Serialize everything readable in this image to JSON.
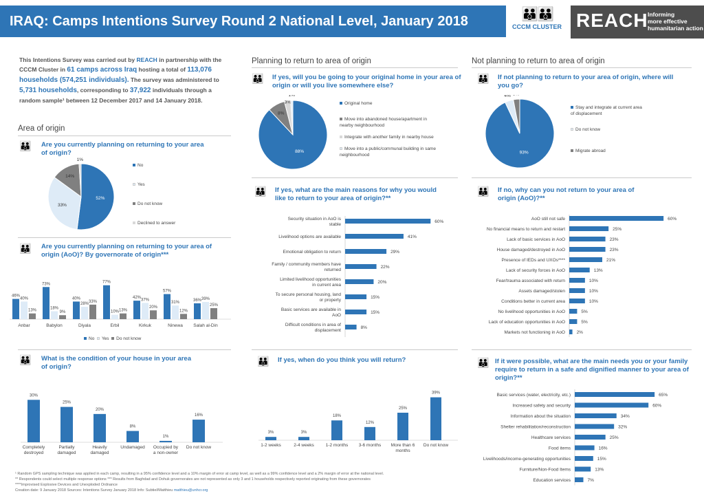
{
  "header": {
    "title": "IRAQ: Camps Intentions Survey Round 2 National Level, January 2018",
    "cccm_label": "CCCM CLUSTER",
    "reach_logo": "REACH",
    "reach_tagline_1": "Informing",
    "reach_tagline_2": "more effective",
    "reach_tagline_3": "humanitarian action"
  },
  "intro": {
    "p1": "This Intentions Survey was carried out by ",
    "reach": "REACH",
    "p2": " in partnership with the CCCM Cluster in ",
    "camps": "61 camps across Iraq",
    "p3": " hosting a total of ",
    "households": "113,076 households (574,251 individuals).",
    "p4": " The survey was administered to ",
    "sample_hh": "5,731 households",
    "p5": ", corresponding to ",
    "sample_ind": "37,922",
    "p6": " individuals through a random sample¹ between 12 December 2017 and 14 January 2018."
  },
  "sections": {
    "area_of_origin": "Area of origin",
    "planning": "Planning to return to area of origin",
    "not_planning": "Not planning to return to area of origin"
  },
  "questions": {
    "q1": "Are you currently planning on returning to your area of origin?",
    "q2": "Are you currently planning on returning to your area of origin (AoO)? By governorate of origin***",
    "q3": "What is the condition of your house in your area of origin?",
    "q4": "If yes, will you be going to your original home in your area of origin or will you live somewhere else?",
    "q5": "If yes, what are the main reasons for why you would like to return to your area of origin?**",
    "q6": "If yes, when do you think you will return?",
    "q7": "If not planning to return to your area of origin, where will you go?",
    "q8": "If no, why can you not return to your area of origin (AoO)?**",
    "q9": "If it were possible, what are the main needs you or your family require to return in a safe and dignified manner to your area of origin?**"
  },
  "colors": {
    "blue": "#2E75B6",
    "light": "#DEEBF7",
    "grey": "#808080",
    "darkgrey": "#595959"
  },
  "footnote": {
    "l1": "¹ Random GPS sampling technique was applied in each camp, resulting in a 95% confidence level and a 10% margin of error at camp level, as well as a 99% confidence level and a 2% margin of error at the national level.",
    "l2": "** Respondents could select multiple response options          *** Results from Baghdad and Dohuk governorates are not represented as only 3 and 1 households respectively reported originating from these governorates",
    "l3": "****Improvised Explosive Devices and Unexploded Ordnance",
    "l4": "Creation date: 9 January 2018  Sources: Intentions Survey January 2018  Info: Subtiel/Matthieu ",
    "email": "matthieu@unhcr.org"
  },
  "chart_data": [
    {
      "id": "planning_return",
      "type": "pie",
      "labels": [
        "No",
        "Yes",
        "Do not know",
        "Declined to answer"
      ],
      "values": [
        52,
        33,
        14,
        1
      ],
      "value_labels": [
        "52%",
        "33%",
        "14%",
        "1%"
      ],
      "colors": [
        "#2E75B6",
        "#DEEBF7",
        "#808080",
        "#D9D9D9"
      ]
    },
    {
      "id": "governorate",
      "type": "bar",
      "categories": [
        "Anbar",
        "Babylon",
        "Diyala",
        "Erbil",
        "Kirkuk",
        "Ninewa",
        "Salah al-Din"
      ],
      "series": [
        {
          "name": "No",
          "values": [
            46,
            73,
            40,
            77,
            42,
            57,
            36
          ]
        },
        {
          "name": "Yes",
          "values": [
            40,
            18,
            28,
            10,
            37,
            31,
            39
          ]
        },
        {
          "name": "Do not know",
          "values": [
            13,
            9,
            33,
            13,
            20,
            12,
            25
          ]
        }
      ],
      "ylim": [
        0,
        100
      ]
    },
    {
      "id": "house_condition",
      "type": "bar",
      "categories": [
        "Completely destroyed",
        "Partially damaged",
        "Heavily damaged",
        "Undamaged",
        "Occupied by a non-owner",
        "Do not know"
      ],
      "values": [
        30,
        25,
        20,
        8,
        1,
        16
      ],
      "ylim": [
        0,
        35
      ]
    },
    {
      "id": "original_home",
      "type": "pie",
      "labels": [
        "Original home",
        "Move into abandoned house/apartment in nearby neighbourhood",
        "Integrate with another family in nearby house",
        "Move into a public/communal building in same neighbourhood"
      ],
      "values": [
        88,
        8,
        3,
        1
      ],
      "value_labels": [
        "88%",
        "8%",
        "3%",
        "1%"
      ],
      "colors": [
        "#2E75B6",
        "#808080",
        "#D9D9D9",
        "#DEEBF7"
      ]
    },
    {
      "id": "reasons_return",
      "type": "bar",
      "orientation": "horizontal",
      "categories": [
        "Security situation in AoO is stable",
        "Livelihood options are available",
        "Emotional obligation to return",
        "Family / community members have returned",
        "Limited livelihood opportunities in current area",
        "To secure personal housing, land or property",
        "Basic services are available in AoO",
        "Difficult conditions in area of displacement"
      ],
      "values": [
        60,
        41,
        29,
        22,
        20,
        15,
        15,
        8
      ],
      "xlim": [
        0,
        70
      ]
    },
    {
      "id": "when_return",
      "type": "bar",
      "categories": [
        "1-2 weeks",
        "2-4 weeks",
        "1-2 months",
        "3-6 months",
        "More than 6 months",
        "Do not know"
      ],
      "values": [
        3,
        3,
        18,
        12,
        25,
        39
      ],
      "ylim": [
        0,
        45
      ]
    },
    {
      "id": "where_go",
      "type": "pie",
      "labels": [
        "Stay and integrate at current area of displacement",
        "Do not know",
        "Migrate abroad"
      ],
      "values": [
        93,
        4,
        3
      ],
      "value_labels": [
        "93%",
        "4%",
        "3%"
      ],
      "colors": [
        "#2E75B6",
        "#DEEBF7",
        "#808080"
      ]
    },
    {
      "id": "why_not_return",
      "type": "bar",
      "orientation": "horizontal",
      "categories": [
        "AoO still not safe",
        "No financial means to return and restart",
        "Lack of basic services in AoO",
        "House damaged/destroyed in AoO",
        "Presence of IEDs and UXOs****",
        "Lack of security forces in AoO",
        "Fear/trauma associated with return",
        "Assets damaged/stolen",
        "Conditions better in current area",
        "No livelihood opportunities in AoO",
        "Lack of education opportunities in AoO",
        "Markets not functioning in AoO"
      ],
      "values": [
        60,
        25,
        23,
        23,
        21,
        13,
        10,
        10,
        10,
        5,
        5,
        2
      ],
      "xlim": [
        0,
        70
      ]
    },
    {
      "id": "needs_return",
      "type": "bar",
      "orientation": "horizontal",
      "categories": [
        "Basic services (water, electricity, etc.)",
        "Increased safety and security",
        "Information about the situation",
        "Shelter rehabilitation/reconstruction",
        "Healthcare services",
        "Food items",
        "Livelihoods/income-generating opportunities",
        "Furniture/Non-Food Items",
        "Education services"
      ],
      "values": [
        65,
        60,
        34,
        32,
        25,
        16,
        15,
        13,
        7
      ],
      "xlim": [
        0,
        75
      ]
    }
  ]
}
